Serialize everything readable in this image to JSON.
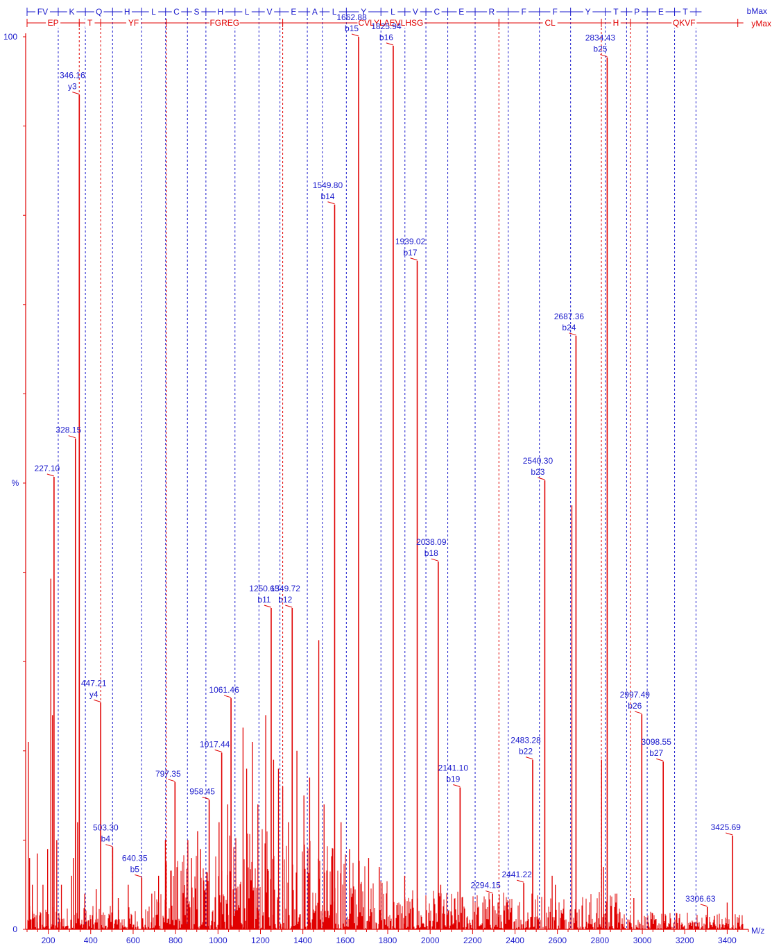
{
  "colors": {
    "b_series": "#1a1acc",
    "y_series": "#e00000",
    "axis": "#222222"
  },
  "chart_data": {
    "type": "bar",
    "title": "",
    "xlabel": "M/z",
    "ylabel": "%",
    "xlim": [
      100,
      3500
    ],
    "ylim": [
      0,
      100
    ],
    "x_ticks": [
      200,
      400,
      600,
      800,
      1000,
      1200,
      1400,
      1600,
      1800,
      2000,
      2200,
      2400,
      2600,
      2800,
      3000,
      3200,
      3400
    ],
    "y_ticks": [
      0,
      100
    ],
    "legend": [
      "bMax",
      "yMax"
    ],
    "b_ladder": {
      "label": "bMax",
      "residues": [
        "FV",
        "K",
        "Q",
        "H",
        "L",
        "C",
        "S",
        "H",
        "L",
        "V",
        "E",
        "A",
        "L",
        "Y",
        "L",
        "V",
        "C",
        "E",
        "R",
        "F",
        "F",
        "Y",
        "T",
        "P",
        "E",
        "T"
      ],
      "boundaries": [
        100,
        247,
        375,
        503,
        640,
        753,
        856,
        943,
        1080,
        1193,
        1292,
        1421,
        1492,
        1605,
        1768,
        1881,
        1980,
        2083,
        2212,
        2368,
        2515,
        2662,
        2825,
        2926,
        3023,
        3152,
        3253
      ]
    },
    "y_ladder": {
      "label": "yMax",
      "residues": [
        "EP",
        "T",
        "YF",
        "FGREG",
        "CVLYLAEVLHSG",
        "CL",
        "H",
        "QKVF"
      ],
      "boundaries": [
        100,
        346,
        447,
        757,
        1305,
        2324,
        2807,
        2944,
        3450
      ]
    },
    "labeled_peaks": [
      {
        "mz": 227.1,
        "intensity": 50.7,
        "label": "227.10",
        "ion": ""
      },
      {
        "mz": 328.15,
        "intensity": 55.0,
        "label": "328.15",
        "ion": ""
      },
      {
        "mz": 346.16,
        "intensity": 93.5,
        "label": "346.16",
        "ion": "y3"
      },
      {
        "mz": 447.21,
        "intensity": 25.4,
        "label": "447.21",
        "ion": "y4"
      },
      {
        "mz": 503.3,
        "intensity": 9.2,
        "label": "503.30",
        "ion": "b4"
      },
      {
        "mz": 640.35,
        "intensity": 5.8,
        "label": "640.35",
        "ion": "b5"
      },
      {
        "mz": 797.35,
        "intensity": 16.5,
        "label": "797.35",
        "ion": ""
      },
      {
        "mz": 958.45,
        "intensity": 14.5,
        "label": "958.45",
        "ion": ""
      },
      {
        "mz": 1017.44,
        "intensity": 19.8,
        "label": "1017.44",
        "ion": ""
      },
      {
        "mz": 1061.46,
        "intensity": 25.9,
        "label": "1061.46",
        "ion": ""
      },
      {
        "mz": 1250.65,
        "intensity": 36.0,
        "label": "1250.65",
        "ion": "b11"
      },
      {
        "mz": 1349.72,
        "intensity": 36.0,
        "label": "1349.72",
        "ion": "b12"
      },
      {
        "mz": 1549.8,
        "intensity": 81.2,
        "label": "1549.80",
        "ion": "b14"
      },
      {
        "mz": 1662.88,
        "intensity": 100.0,
        "label": "1662.88",
        "ion": "b15"
      },
      {
        "mz": 1825.94,
        "intensity": 99.0,
        "label": "1825.94",
        "ion": "b16"
      },
      {
        "mz": 1939.02,
        "intensity": 74.9,
        "label": "1939.02",
        "ion": "b17"
      },
      {
        "mz": 2038.09,
        "intensity": 41.2,
        "label": "2038.09",
        "ion": "b18"
      },
      {
        "mz": 2141.1,
        "intensity": 15.9,
        "label": "2141.10",
        "ion": "b19"
      },
      {
        "mz": 2294.15,
        "intensity": 4.0,
        "label": "2294.15",
        "ion": ""
      },
      {
        "mz": 2441.22,
        "intensity": 5.2,
        "label": "2441.22",
        "ion": ""
      },
      {
        "mz": 2483.28,
        "intensity": 19.0,
        "label": "2483.28",
        "ion": "b22"
      },
      {
        "mz": 2540.3,
        "intensity": 50.3,
        "label": "2540.30",
        "ion": "b23"
      },
      {
        "mz": 2687.36,
        "intensity": 66.5,
        "label": "2687.36",
        "ion": "b24"
      },
      {
        "mz": 2834.43,
        "intensity": 97.7,
        "label": "2834.43",
        "ion": "b25"
      },
      {
        "mz": 2997.49,
        "intensity": 24.1,
        "label": "2997.49",
        "ion": "b26"
      },
      {
        "mz": 3098.55,
        "intensity": 18.8,
        "label": "3098.55",
        "ion": "b27"
      },
      {
        "mz": 3306.63,
        "intensity": 2.5,
        "label": "3306.63",
        "ion": ""
      },
      {
        "mz": 3425.69,
        "intensity": 10.5,
        "label": "3425.69",
        "ion": ""
      }
    ],
    "unlabeled_peaks": [
      {
        "mz": 106,
        "intensity": 21.0
      },
      {
        "mz": 112,
        "intensity": 8.0
      },
      {
        "mz": 125,
        "intensity": 5.0
      },
      {
        "mz": 148,
        "intensity": 8.5
      },
      {
        "mz": 175,
        "intensity": 5.0
      },
      {
        "mz": 197,
        "intensity": 9.0
      },
      {
        "mz": 212,
        "intensity": 39.3
      },
      {
        "mz": 220,
        "intensity": 24.0
      },
      {
        "mz": 240,
        "intensity": 10.0
      },
      {
        "mz": 262,
        "intensity": 5.0
      },
      {
        "mz": 310,
        "intensity": 6.0
      },
      {
        "mz": 318,
        "intensity": 8.0
      },
      {
        "mz": 338,
        "intensity": 12.0
      },
      {
        "mz": 372,
        "intensity": 4.0
      },
      {
        "mz": 426,
        "intensity": 4.5
      },
      {
        "mz": 530,
        "intensity": 3.5
      },
      {
        "mz": 577,
        "intensity": 5.0
      },
      {
        "mz": 688,
        "intensity": 4.0
      },
      {
        "mz": 720,
        "intensity": 6.0
      },
      {
        "mz": 752,
        "intensity": 10.0
      },
      {
        "mz": 756,
        "intensity": 7.5
      },
      {
        "mz": 858,
        "intensity": 10.0
      },
      {
        "mz": 875,
        "intensity": 8.0
      },
      {
        "mz": 904,
        "intensity": 11.0
      },
      {
        "mz": 918,
        "intensity": 9.0
      },
      {
        "mz": 1005,
        "intensity": 12.0
      },
      {
        "mz": 1046,
        "intensity": 14.0
      },
      {
        "mz": 1118,
        "intensity": 22.6
      },
      {
        "mz": 1135,
        "intensity": 18.0
      },
      {
        "mz": 1162,
        "intensity": 21.0
      },
      {
        "mz": 1188,
        "intensity": 14.0
      },
      {
        "mz": 1225,
        "intensity": 24.0
      },
      {
        "mz": 1262,
        "intensity": 19.0
      },
      {
        "mz": 1285,
        "intensity": 18.0
      },
      {
        "mz": 1305,
        "intensity": 16.0
      },
      {
        "mz": 1332,
        "intensity": 12.0
      },
      {
        "mz": 1372,
        "intensity": 20.0
      },
      {
        "mz": 1405,
        "intensity": 15.0
      },
      {
        "mz": 1432,
        "intensity": 17.0
      },
      {
        "mz": 1475,
        "intensity": 32.4
      },
      {
        "mz": 1500,
        "intensity": 14.0
      },
      {
        "mz": 1580,
        "intensity": 12.0
      },
      {
        "mz": 1620,
        "intensity": 9.0
      },
      {
        "mz": 1710,
        "intensity": 8.0
      },
      {
        "mz": 1760,
        "intensity": 7.0
      },
      {
        "mz": 1880,
        "intensity": 6.0
      },
      {
        "mz": 2050,
        "intensity": 5.0
      },
      {
        "mz": 2320,
        "intensity": 3.0
      },
      {
        "mz": 2480,
        "intensity": 4.0
      },
      {
        "mz": 2575,
        "intensity": 6.0
      },
      {
        "mz": 2590,
        "intensity": 5.0
      },
      {
        "mz": 2668,
        "intensity": 47.5
      },
      {
        "mz": 2808,
        "intensity": 19.0
      },
      {
        "mz": 2817,
        "intensity": 7.0
      },
      {
        "mz": 2880,
        "intensity": 4.0
      },
      {
        "mz": 2960,
        "intensity": 3.5
      },
      {
        "mz": 3340,
        "intensity": 1.5
      },
      {
        "mz": 3400,
        "intensity": 3.0
      }
    ]
  }
}
